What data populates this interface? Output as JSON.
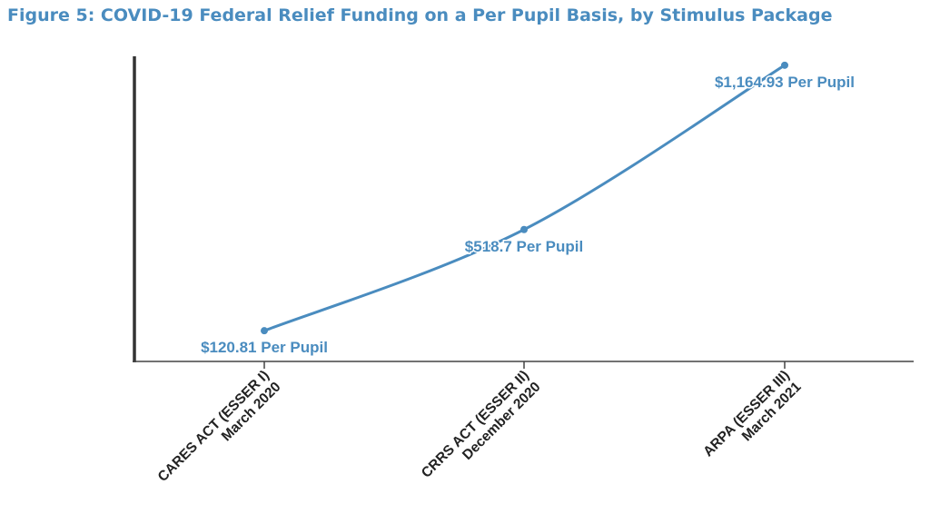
{
  "chart_data": {
    "type": "line",
    "title": "Figure 5: COVID-19 Federal Relief Funding on a Per Pupil Basis, by Stimulus Package",
    "categories": [
      [
        "CARES ACT (ESSER I)",
        "March 2020"
      ],
      [
        "CRRS ACT (ESSER II)",
        "December 2020"
      ],
      [
        "ARPA (ESSER III)",
        "March 2021"
      ]
    ],
    "values": [
      120.81,
      518.7,
      1164.93
    ],
    "data_labels": [
      "$120.81 Per Pupil",
      "$518.7 Per Pupil",
      "$1,164.93 Per Pupil"
    ],
    "xlabel": "",
    "ylabel": "",
    "ylim": [
      0,
      1200
    ],
    "grid": false,
    "legend": "none",
    "colors": {
      "line": "#4a8cbf",
      "axis": "#333333",
      "title": "#4a8cbf"
    }
  }
}
